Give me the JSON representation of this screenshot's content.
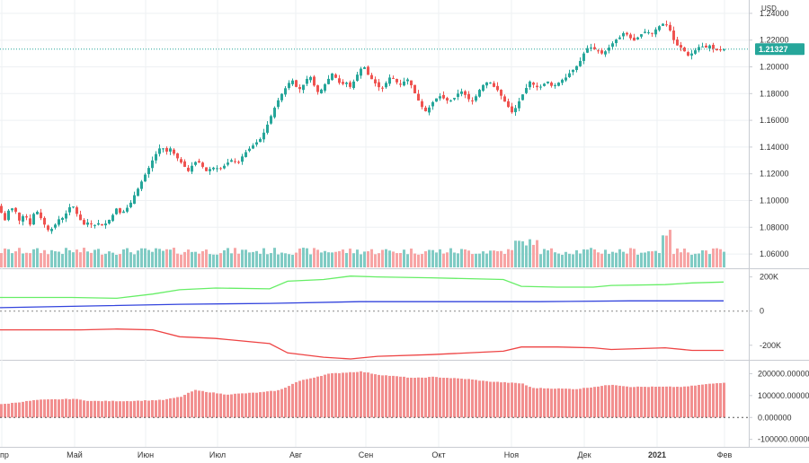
{
  "colors": {
    "up": "#26a69a",
    "down": "#ef5350",
    "up_volume": "#80cbc4",
    "down_volume": "#f7a5a5",
    "green_line": "#66ee66",
    "blue_line": "#3344dd",
    "red_line": "#ee4444",
    "histogram": "#f28f8f",
    "last_price_bg": "#26a69a",
    "grid": "#eef0f3",
    "border": "#c9ccd2"
  },
  "chart_data": [
    {
      "type": "candlestick",
      "currency_label": "USD",
      "last_price_label": "1.21327",
      "last_price": 1.21327,
      "yaxis_ticks": [
        "1.24000",
        "1.22000",
        "1.20000",
        "1.18000",
        "1.16000",
        "1.14000",
        "1.12000",
        "1.10000",
        "1.08000",
        "1.06000"
      ],
      "ylim": [
        1.05,
        1.25
      ],
      "x_ticks": [
        "пр",
        "Май",
        "Июн",
        "Июл",
        "Авг",
        "Сен",
        "Окт",
        "Ноя",
        "Дек",
        "2021",
        "Фев"
      ],
      "close_path": [
        [
          0,
          1.096
        ],
        [
          5,
          1.083
        ],
        [
          9,
          1.092
        ],
        [
          16,
          1.095
        ],
        [
          22,
          1.085
        ],
        [
          28,
          1.09
        ],
        [
          34,
          1.082
        ],
        [
          40,
          1.094
        ],
        [
          45,
          1.088
        ],
        [
          50,
          1.082
        ],
        [
          55,
          1.077
        ],
        [
          60,
          1.08
        ],
        [
          66,
          1.086
        ],
        [
          70,
          1.087
        ],
        [
          76,
          1.092
        ],
        [
          80,
          1.098
        ],
        [
          84,
          1.093
        ],
        [
          88,
          1.087
        ],
        [
          94,
          1.082
        ],
        [
          99,
          1.084
        ],
        [
          104,
          1.081
        ],
        [
          110,
          1.083
        ],
        [
          115,
          1.081
        ],
        [
          120,
          1.084
        ],
        [
          125,
          1.088
        ],
        [
          130,
          1.094
        ],
        [
          135,
          1.09
        ],
        [
          140,
          1.093
        ],
        [
          145,
          1.097
        ],
        [
          150,
          1.104
        ],
        [
          155,
          1.11
        ],
        [
          160,
          1.117
        ],
        [
          165,
          1.123
        ],
        [
          170,
          1.13
        ],
        [
          175,
          1.136
        ],
        [
          180,
          1.141
        ],
        [
          185,
          1.136
        ],
        [
          190,
          1.139
        ],
        [
          195,
          1.134
        ],
        [
          200,
          1.13
        ],
        [
          205,
          1.126
        ],
        [
          210,
          1.122
        ],
        [
          215,
          1.127
        ],
        [
          220,
          1.13
        ],
        [
          225,
          1.126
        ],
        [
          230,
          1.122
        ],
        [
          235,
          1.124
        ],
        [
          240,
          1.125
        ],
        [
          245,
          1.123
        ],
        [
          250,
          1.126
        ],
        [
          255,
          1.129
        ],
        [
          260,
          1.131
        ],
        [
          265,
          1.127
        ],
        [
          270,
          1.133
        ],
        [
          275,
          1.137
        ],
        [
          280,
          1.14
        ],
        [
          285,
          1.143
        ],
        [
          290,
          1.146
        ],
        [
          295,
          1.152
        ],
        [
          300,
          1.16
        ],
        [
          305,
          1.168
        ],
        [
          310,
          1.175
        ],
        [
          315,
          1.181
        ],
        [
          320,
          1.186
        ],
        [
          325,
          1.191
        ],
        [
          330,
          1.185
        ],
        [
          335,
          1.183
        ],
        [
          340,
          1.189
        ],
        [
          345,
          1.194
        ],
        [
          350,
          1.186
        ],
        [
          355,
          1.18
        ],
        [
          360,
          1.185
        ],
        [
          365,
          1.19
        ],
        [
          370,
          1.195
        ],
        [
          375,
          1.191
        ],
        [
          380,
          1.186
        ],
        [
          385,
          1.189
        ],
        [
          390,
          1.185
        ],
        [
          395,
          1.19
        ],
        [
          400,
          1.197
        ],
        [
          405,
          1.201
        ],
        [
          410,
          1.194
        ],
        [
          415,
          1.19
        ],
        [
          420,
          1.186
        ],
        [
          425,
          1.183
        ],
        [
          430,
          1.188
        ],
        [
          435,
          1.193
        ],
        [
          440,
          1.19
        ],
        [
          445,
          1.186
        ],
        [
          450,
          1.189
        ],
        [
          455,
          1.191
        ],
        [
          460,
          1.183
        ],
        [
          465,
          1.176
        ],
        [
          470,
          1.17
        ],
        [
          475,
          1.166
        ],
        [
          480,
          1.172
        ],
        [
          485,
          1.176
        ],
        [
          490,
          1.178
        ],
        [
          495,
          1.176
        ],
        [
          500,
          1.174
        ],
        [
          505,
          1.176
        ],
        [
          510,
          1.18
        ],
        [
          515,
          1.182
        ],
        [
          520,
          1.177
        ],
        [
          525,
          1.174
        ],
        [
          530,
          1.178
        ],
        [
          535,
          1.184
        ],
        [
          540,
          1.188
        ],
        [
          545,
          1.189
        ],
        [
          550,
          1.185
        ],
        [
          555,
          1.182
        ],
        [
          560,
          1.176
        ],
        [
          565,
          1.171
        ],
        [
          570,
          1.166
        ],
        [
          575,
          1.17
        ],
        [
          580,
          1.177
        ],
        [
          585,
          1.183
        ],
        [
          590,
          1.189
        ],
        [
          595,
          1.186
        ],
        [
          600,
          1.184
        ],
        [
          605,
          1.187
        ],
        [
          610,
          1.189
        ],
        [
          615,
          1.185
        ],
        [
          620,
          1.187
        ],
        [
          625,
          1.19
        ],
        [
          630,
          1.192
        ],
        [
          635,
          1.196
        ],
        [
          640,
          1.199
        ],
        [
          645,
          1.203
        ],
        [
          650,
          1.21
        ],
        [
          655,
          1.215
        ],
        [
          660,
          1.214
        ],
        [
          665,
          1.212
        ],
        [
          670,
          1.21
        ],
        [
          675,
          1.212
        ],
        [
          680,
          1.216
        ],
        [
          685,
          1.22
        ],
        [
          690,
          1.222
        ],
        [
          695,
          1.226
        ],
        [
          700,
          1.223
        ],
        [
          705,
          1.219
        ],
        [
          710,
          1.222
        ],
        [
          715,
          1.225
        ],
        [
          720,
          1.227
        ],
        [
          725,
          1.224
        ],
        [
          730,
          1.228
        ],
        [
          735,
          1.231
        ],
        [
          740,
          1.233
        ],
        [
          745,
          1.229
        ],
        [
          750,
          1.22
        ],
        [
          755,
          1.215
        ],
        [
          760,
          1.214
        ],
        [
          765,
          1.208
        ],
        [
          770,
          1.21
        ],
        [
          775,
          1.213
        ],
        [
          780,
          1.216
        ],
        [
          785,
          1.214
        ],
        [
          790,
          1.216
        ],
        [
          795,
          1.213
        ],
        [
          800,
          1.212
        ],
        [
          805,
          1.213
        ]
      ]
    },
    {
      "type": "line",
      "y_ticks": [
        "200K",
        "0",
        "-200K"
      ],
      "ylim": [
        -280000,
        240000
      ],
      "series": [
        {
          "color": "green",
          "points": [
            [
              0,
              80000
            ],
            [
              80,
              80000
            ],
            [
              130,
              75000
            ],
            [
              170,
              100000
            ],
            [
              200,
              125000
            ],
            [
              240,
              135000
            ],
            [
              300,
              130000
            ],
            [
              320,
              175000
            ],
            [
              360,
              185000
            ],
            [
              390,
              205000
            ],
            [
              420,
              200000
            ],
            [
              480,
              195000
            ],
            [
              560,
              185000
            ],
            [
              580,
              145000
            ],
            [
              620,
              140000
            ],
            [
              660,
              140000
            ],
            [
              680,
              150000
            ],
            [
              740,
              155000
            ],
            [
              770,
              165000
            ],
            [
              805,
              170000
            ]
          ]
        },
        {
          "color": "blue",
          "points": [
            [
              0,
              20000
            ],
            [
              100,
              30000
            ],
            [
              200,
              40000
            ],
            [
              300,
              45000
            ],
            [
              400,
              55000
            ],
            [
              500,
              55000
            ],
            [
              600,
              55000
            ],
            [
              700,
              60000
            ],
            [
              805,
              60000
            ]
          ]
        },
        {
          "color": "red",
          "points": [
            [
              0,
              -110000
            ],
            [
              90,
              -110000
            ],
            [
              130,
              -105000
            ],
            [
              170,
              -110000
            ],
            [
              200,
              -150000
            ],
            [
              240,
              -160000
            ],
            [
              300,
              -190000
            ],
            [
              320,
              -245000
            ],
            [
              360,
              -270000
            ],
            [
              390,
              -280000
            ],
            [
              420,
              -265000
            ],
            [
              480,
              -255000
            ],
            [
              560,
              -235000
            ],
            [
              580,
              -210000
            ],
            [
              620,
              -210000
            ],
            [
              660,
              -215000
            ],
            [
              680,
              -225000
            ],
            [
              740,
              -215000
            ],
            [
              770,
              -230000
            ],
            [
              805,
              -230000
            ]
          ]
        }
      ]
    },
    {
      "type": "bar",
      "y_ticks": [
        "200000.000000",
        "100000.000000",
        "0.000000",
        "-100000.000000"
      ],
      "ylim": [
        -130000,
        255000
      ],
      "values_path": [
        [
          0,
          60000
        ],
        [
          40,
          80000
        ],
        [
          80,
          85000
        ],
        [
          100,
          75000
        ],
        [
          140,
          75000
        ],
        [
          180,
          80000
        ],
        [
          200,
          95000
        ],
        [
          215,
          125000
        ],
        [
          250,
          105000
        ],
        [
          290,
          115000
        ],
        [
          310,
          125000
        ],
        [
          330,
          165000
        ],
        [
          365,
          200000
        ],
        [
          400,
          210000
        ],
        [
          420,
          195000
        ],
        [
          460,
          180000
        ],
        [
          480,
          185000
        ],
        [
          520,
          175000
        ],
        [
          540,
          165000
        ],
        [
          580,
          155000
        ],
        [
          590,
          135000
        ],
        [
          640,
          130000
        ],
        [
          680,
          150000
        ],
        [
          700,
          140000
        ],
        [
          760,
          140000
        ],
        [
          780,
          150000
        ],
        [
          805,
          160000
        ]
      ]
    }
  ]
}
